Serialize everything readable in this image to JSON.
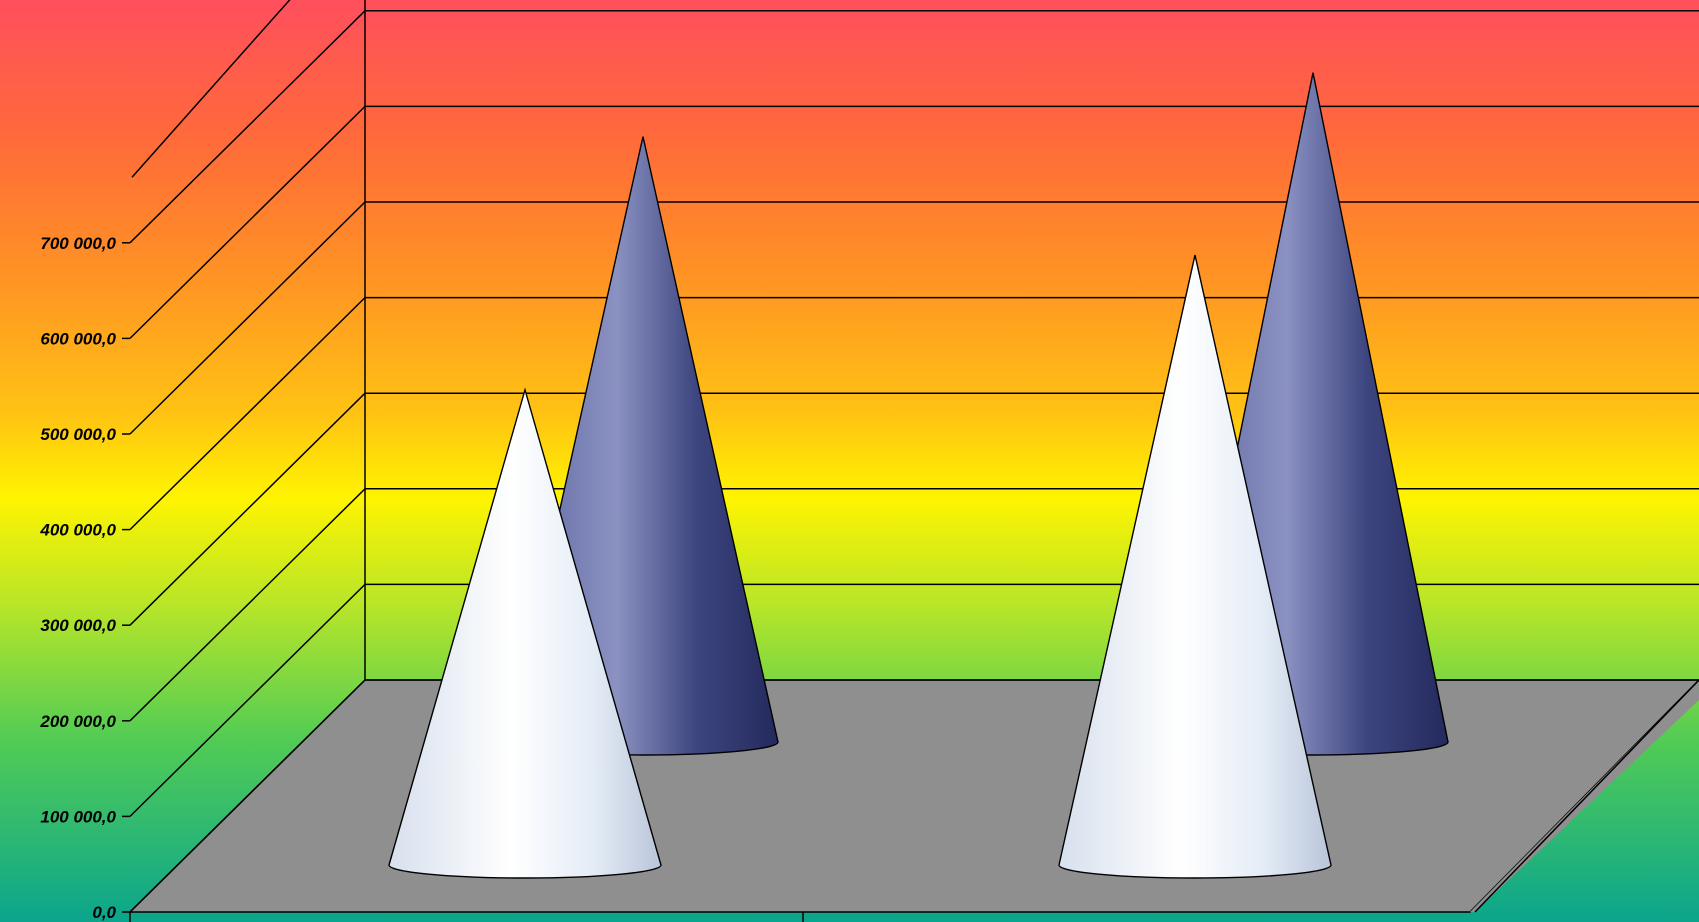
{
  "chart_data": {
    "type": "3d-cone",
    "ylim": [
      0,
      700000
    ],
    "y_ticks": [
      "0,0",
      "100 000,0",
      "200 000,0",
      "300 000,0",
      "400 000,0",
      "500 000,0",
      "600 000,0",
      "700 000,0"
    ],
    "categories": [
      "",
      ""
    ],
    "series": [
      {
        "values": [
          497000,
          638000
        ],
        "color": "#dde6f2"
      },
      {
        "values": [
          583000,
          650000
        ],
        "color": "#3f4784"
      }
    ],
    "colors": {
      "floor": "#8f8f8f",
      "gridline": "#000000"
    },
    "grid": true
  }
}
